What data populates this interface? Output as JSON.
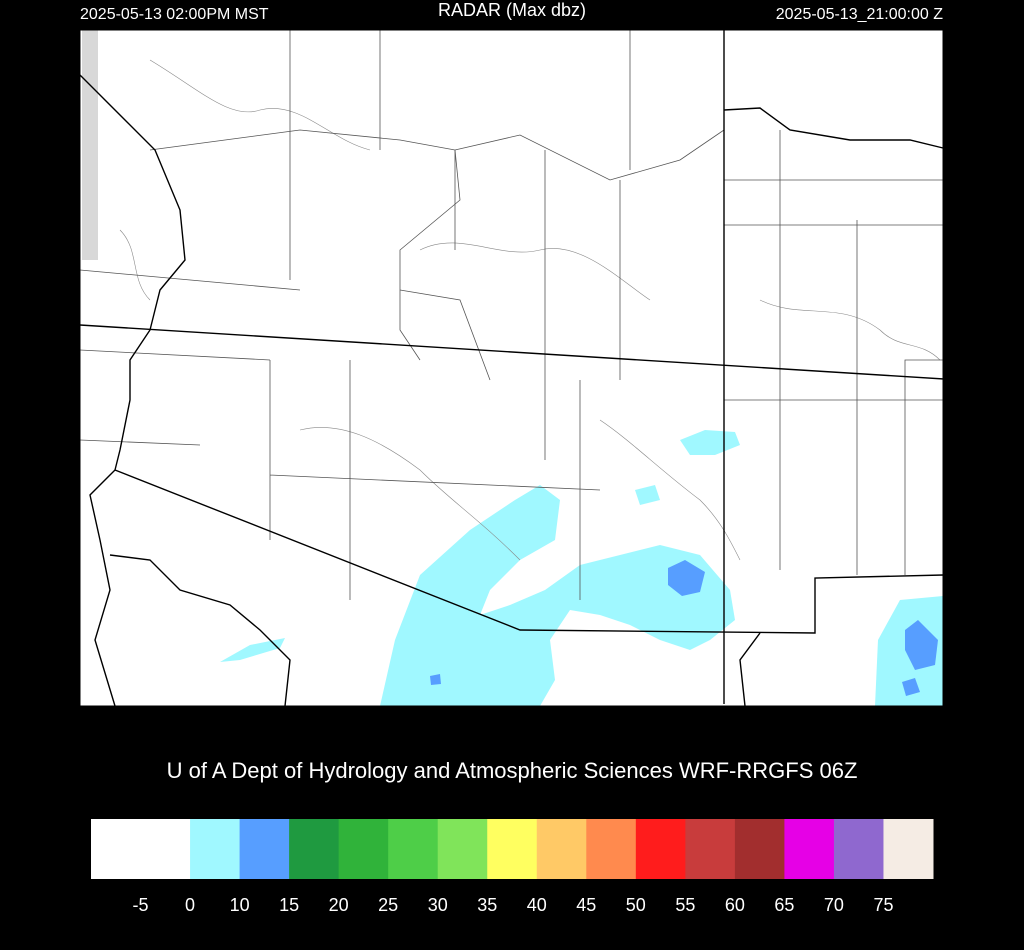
{
  "header": {
    "left": "2025-05-13 02:00PM MST",
    "title": "RADAR (Max dbz)",
    "right": "2025-05-13_21:00:00 Z"
  },
  "credit": "U of A Dept of Hydrology and Atmospheric Sciences WRF-RRGFS 06Z",
  "colorbar": {
    "colors": [
      "#ffffff",
      "#ffffff",
      "#a0f8ff",
      "#579eff",
      "#1f9a40",
      "#30b33a",
      "#4ece48",
      "#80e45a",
      "#ffff60",
      "#ffc966",
      "#ff8a4e",
      "#ff1c1c",
      "#c83c3c",
      "#a22e2e",
      "#e600e6",
      "#8f68cf",
      "#f5ece4"
    ],
    "ticks": [
      -5,
      0,
      10,
      15,
      20,
      25,
      30,
      35,
      40,
      45,
      50,
      55,
      60,
      65,
      70,
      75
    ]
  }
}
